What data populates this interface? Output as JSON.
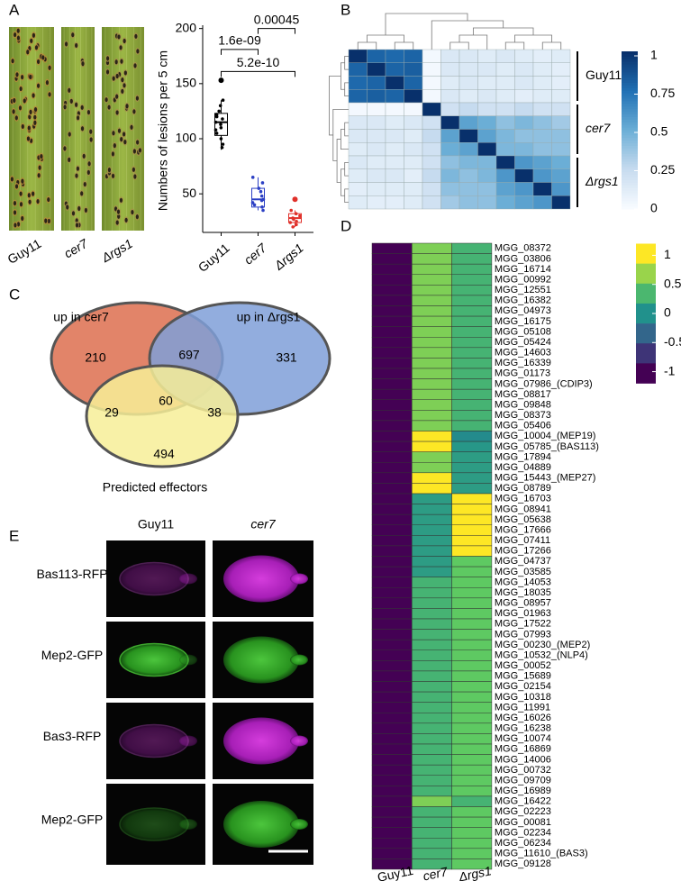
{
  "panel_labels": [
    "A",
    "B",
    "C",
    "D",
    "E"
  ],
  "leaves": {
    "labels": [
      "Guy11",
      "cer7",
      "Δrgs1"
    ]
  },
  "lesions": {
    "type": "box",
    "y_label": "Numbers of lesions per 5 cm",
    "categories": [
      "Guy11",
      "cer7",
      "Δrgs1"
    ],
    "ylim": [
      15,
      203
    ],
    "yticks": [
      50,
      100,
      150,
      200
    ],
    "boxes": [
      {
        "color": "#000000",
        "whisker_low": 90,
        "q1": 103,
        "median": 115,
        "q3": 123,
        "whisker_high": 135,
        "points": [
          92,
          95,
          100,
          105,
          108,
          110,
          113,
          115,
          118,
          120,
          122,
          125,
          130,
          135
        ],
        "outliers": [
          153
        ]
      },
      {
        "color": "#2b3fc4",
        "whisker_low": 35,
        "q1": 38,
        "median": 45,
        "q3": 55,
        "whisker_high": 65,
        "points": [
          35,
          38,
          40,
          42,
          44,
          45,
          48,
          52,
          55,
          60,
          65
        ],
        "outliers": []
      },
      {
        "color": "#e0302a",
        "whisker_low": 20,
        "q1": 24,
        "median": 28,
        "q3": 32,
        "whisker_high": 35,
        "points": [
          20,
          22,
          24,
          25,
          27,
          28,
          30,
          32,
          35
        ],
        "outliers": [
          45
        ]
      }
    ],
    "comparisons": [
      {
        "pair": [
          0,
          1
        ],
        "y": 181,
        "label": "1.6e-09"
      },
      {
        "pair": [
          1,
          2
        ],
        "y": 200,
        "label": "0.00045"
      },
      {
        "pair": [
          0,
          2
        ],
        "y": 161,
        "label": "5.2e-10"
      }
    ]
  },
  "correlation": {
    "type": "heatmap",
    "matrix": [
      [
        1,
        0.8,
        0.78,
        0.8,
        0.02,
        0.15,
        0.15,
        0.12,
        0.15,
        0.12,
        0.1,
        0.12
      ],
      [
        0.8,
        1,
        0.8,
        0.82,
        0.02,
        0.15,
        0.15,
        0.15,
        0.12,
        0.15,
        0.12,
        0.1
      ],
      [
        0.78,
        0.8,
        1,
        0.8,
        0.02,
        0.12,
        0.15,
        0.12,
        0.12,
        0.15,
        0.12,
        0.1
      ],
      [
        0.8,
        0.82,
        0.8,
        1,
        0.02,
        0.15,
        0.12,
        0.15,
        0.12,
        0.1,
        0.12,
        0.12
      ],
      [
        0.02,
        0.02,
        0.02,
        0.02,
        1,
        0.2,
        0.25,
        0.2,
        0.2,
        0.25,
        0.2,
        0.2
      ],
      [
        0.15,
        0.15,
        0.12,
        0.15,
        0.2,
        1,
        0.55,
        0.5,
        0.4,
        0.45,
        0.4,
        0.35
      ],
      [
        0.15,
        0.15,
        0.15,
        0.12,
        0.25,
        0.55,
        1,
        0.55,
        0.45,
        0.4,
        0.4,
        0.4
      ],
      [
        0.12,
        0.15,
        0.12,
        0.15,
        0.2,
        0.5,
        0.55,
        1,
        0.45,
        0.45,
        0.4,
        0.4
      ],
      [
        0.15,
        0.12,
        0.12,
        0.12,
        0.2,
        0.4,
        0.45,
        0.45,
        1,
        0.6,
        0.55,
        0.5
      ],
      [
        0.12,
        0.15,
        0.15,
        0.1,
        0.25,
        0.45,
        0.4,
        0.45,
        0.6,
        1,
        0.6,
        0.55
      ],
      [
        0.1,
        0.12,
        0.12,
        0.12,
        0.2,
        0.4,
        0.4,
        0.4,
        0.55,
        0.6,
        1,
        0.6
      ],
      [
        0.12,
        0.1,
        0.1,
        0.12,
        0.2,
        0.35,
        0.4,
        0.4,
        0.5,
        0.55,
        0.6,
        1
      ]
    ],
    "groups": [
      {
        "label": "Guy11",
        "rows": 4
      },
      {
        "label": "cer7",
        "rows": 4
      },
      {
        "label": "Δrgs1",
        "rows": 4
      }
    ],
    "clim": [
      0,
      1
    ],
    "colormap": [
      "#f7fbff",
      "#c6dbef",
      "#6baed6",
      "#2171b5",
      "#08306b"
    ],
    "colorbar_ticks": [
      0,
      0.25,
      0.5,
      0.75,
      1
    ]
  },
  "venn": {
    "sets": [
      {
        "label": "up in cer7",
        "color": "#dd6f4f"
      },
      {
        "label": "up in Δrgs1",
        "color": "#7f9fd8"
      },
      {
        "label": "Predicted effectors",
        "color": "#f7ee98"
      }
    ],
    "regions": [
      210,
      697,
      331,
      60,
      29,
      38,
      494
    ]
  },
  "expression": {
    "type": "heatmap",
    "columns": [
      "Guy11",
      "cer7",
      "Δrgs1"
    ],
    "genes": [
      "MGG_08372",
      "MGG_03806",
      "MGG_16714",
      "MGG_00992",
      "MGG_12551",
      "MGG_16382",
      "MGG_04973",
      "MGG_16175",
      "MGG_05108",
      "MGG_05424",
      "MGG_14603",
      "MGG_16339",
      "MGG_01173",
      "MGG_07986_(CDIP3)",
      "MGG_08817",
      "MGG_09848",
      "MGG_08373",
      "MGG_05406",
      "MGG_10004_(MEP19)",
      "MGG_05785_(BAS113)",
      "MGG_17894",
      "MGG_04889",
      "MGG_15443_(MEP27)",
      "MGG_08789",
      "MGG_16703",
      "MGG_08941",
      "MGG_05638",
      "MGG_17666",
      "MGG_07411",
      "MGG_17266",
      "MGG_04737",
      "MGG_03585",
      "MGG_14053",
      "MGG_18035",
      "MGG_08957",
      "MGG_01963",
      "MGG_17522",
      "MGG_07993",
      "MGG_00230_(MEP2)",
      "MGG_10532_(NLP4)",
      "MGG_00052",
      "MGG_15689",
      "MGG_02154",
      "MGG_10318",
      "MGG_11991",
      "MGG_16026",
      "MGG_16238",
      "MGG_10074",
      "MGG_16869",
      "MGG_14006",
      "MGG_00732",
      "MGG_09709",
      "MGG_16989",
      "MGG_16422",
      "MGG_02223",
      "MGG_00081",
      "MGG_02234",
      "MGG_06234",
      "MGG_11610_(BAS3)",
      "MGG_09128"
    ],
    "values": [
      [
        -1,
        -1,
        -1,
        -1,
        -1,
        -1,
        -1,
        -1,
        -1,
        -1,
        -1,
        -1,
        -1,
        -1,
        -1,
        -1,
        -1,
        -1,
        -1,
        -1,
        -1,
        -1,
        -1,
        -1,
        -1,
        -1,
        -1,
        -1,
        -1,
        -1,
        -1,
        -1,
        -1,
        -1,
        -1,
        -1,
        -1,
        -1,
        -1,
        -1,
        -1,
        -1,
        -1,
        -1,
        -1,
        -1,
        -1,
        -1,
        -1,
        -1,
        -1,
        -1,
        -1,
        -1,
        -1,
        -1,
        -1,
        -1,
        -1,
        -1
      ],
      [
        0.6,
        0.6,
        0.6,
        0.6,
        0.6,
        0.6,
        0.6,
        0.6,
        0.6,
        0.6,
        0.6,
        0.6,
        0.6,
        0.6,
        0.6,
        0.6,
        0.6,
        0.6,
        1,
        1,
        0.6,
        0.6,
        1,
        1,
        0.1,
        0.1,
        0.1,
        0.1,
        0.1,
        0.1,
        0.1,
        0.1,
        0.3,
        0.3,
        0.3,
        0.3,
        0.3,
        0.3,
        0.3,
        0.3,
        0.3,
        0.3,
        0.3,
        0.3,
        0.3,
        0.3,
        0.3,
        0.3,
        0.3,
        0.3,
        0.3,
        0.3,
        0.3,
        0.6,
        0.3,
        0.3,
        0.3,
        0.3,
        0.3,
        0.3
      ],
      [
        0.3,
        0.3,
        0.3,
        0.3,
        0.3,
        0.3,
        0.3,
        0.3,
        0.3,
        0.3,
        0.3,
        0.3,
        0.3,
        0.3,
        0.3,
        0.3,
        0.3,
        0.3,
        -0.05,
        0.05,
        0.1,
        0.1,
        0.1,
        0.1,
        1,
        1,
        1,
        1,
        1,
        1,
        0.5,
        0.5,
        0.5,
        0.5,
        0.5,
        0.5,
        0.5,
        0.5,
        0.5,
        0.5,
        0.5,
        0.5,
        0.5,
        0.5,
        0.5,
        0.5,
        0.5,
        0.5,
        0.5,
        0.5,
        0.5,
        0.5,
        0.5,
        0.3,
        0.5,
        0.5,
        0.5,
        0.5,
        0.5,
        0.5
      ]
    ],
    "clim": [
      -1,
      1
    ],
    "colorbar_lim": [
      -1.2,
      1.2
    ],
    "colormap": [
      "#440154",
      "#3b528b",
      "#21918c",
      "#5ec962",
      "#fde725"
    ],
    "colorbar_ticks": [
      1,
      0.5,
      0,
      -0.5,
      -1
    ]
  },
  "microscopy": {
    "columns": [
      "Guy11",
      "cer7"
    ],
    "rows": [
      "Bas113-RFP",
      "Mep2-GFP",
      "Bas3-RFP",
      "Mep2-GFP"
    ]
  }
}
